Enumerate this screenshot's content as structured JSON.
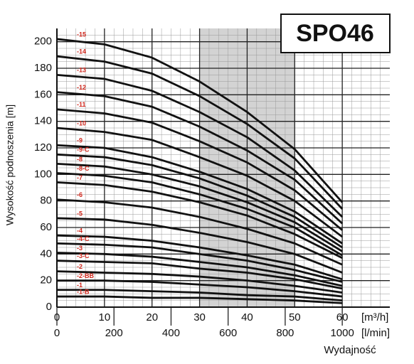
{
  "chart_data": {
    "type": "line",
    "title": "SPO46",
    "x_label": "Wydajność",
    "y_label": "Wysokość podnoszenia [m]",
    "x_unit": "[m³/h]",
    "x2_unit": "[l/min]",
    "x": [
      0,
      10,
      20,
      30,
      40,
      50,
      60
    ],
    "xlim": [
      0,
      70
    ],
    "xticks": [
      0,
      10,
      20,
      30,
      40,
      50,
      60
    ],
    "x2lim": [
      0,
      1166.7
    ],
    "x2ticks": [
      0,
      200,
      400,
      600,
      800,
      1000
    ],
    "ylim": [
      0,
      210
    ],
    "yticks": [
      0,
      20,
      40,
      60,
      80,
      100,
      120,
      140,
      160,
      180,
      200
    ],
    "grid": true,
    "shade": [
      30,
      50
    ],
    "shade_color": "#d3d3d3",
    "label_color": "#d0261b",
    "series": [
      {
        "name": "-15",
        "color": "#111111",
        "values": [
          202,
          198,
          188,
          170,
          147,
          119,
          79
        ]
      },
      {
        "name": "-14",
        "color": "#111111",
        "values": [
          189,
          185,
          176,
          159,
          138,
          112,
          74
        ]
      },
      {
        "name": "-13",
        "color": "#111111",
        "values": [
          175,
          172,
          163,
          147,
          128,
          103,
          68
        ]
      },
      {
        "name": "-12",
        "color": "#111111",
        "values": [
          162,
          159,
          151,
          136,
          118,
          96,
          63
        ]
      },
      {
        "name": "-11",
        "color": "#111111",
        "values": [
          149,
          146,
          139,
          125,
          109,
          88,
          58
        ]
      },
      {
        "name": "-10",
        "color": "#111111",
        "values": [
          135,
          132,
          126,
          113,
          99,
          80,
          53
        ]
      },
      {
        "name": "-9",
        "color": "#111111",
        "values": [
          122,
          120,
          113,
          102,
          89,
          72,
          48
        ]
      },
      {
        "name": "-9-C",
        "color": "#111111",
        "values": [
          115,
          113,
          107,
          97,
          84,
          68,
          45
        ]
      },
      {
        "name": "-8",
        "color": "#111111",
        "values": [
          108,
          106,
          100,
          91,
          79,
          64,
          42
        ]
      },
      {
        "name": "-8-C",
        "color": "#111111",
        "values": [
          101,
          99,
          94,
          85,
          74,
          60,
          39
        ]
      },
      {
        "name": "-7",
        "color": "#111111",
        "values": [
          94,
          92,
          87,
          79,
          69,
          55,
          37
        ]
      },
      {
        "name": "-6",
        "color": "#111111",
        "values": [
          81,
          79,
          75,
          68,
          59,
          48,
          32
        ]
      },
      {
        "name": "-5",
        "color": "#111111",
        "values": [
          67,
          66,
          62,
          56,
          49,
          40,
          26
        ]
      },
      {
        "name": "-4",
        "color": "#111111",
        "values": [
          54,
          53,
          50,
          45,
          39,
          32,
          21
        ]
      },
      {
        "name": "-4-C",
        "color": "#111111",
        "values": [
          48,
          47,
          45,
          40,
          35,
          28,
          19
        ]
      },
      {
        "name": "-3",
        "color": "#111111",
        "values": [
          41,
          40,
          38,
          34,
          30,
          24,
          16
        ]
      },
      {
        "name": "-3-C",
        "color": "#111111",
        "values": [
          35,
          34,
          33,
          29,
          26,
          21,
          14
        ]
      },
      {
        "name": "-2",
        "color": "#111111",
        "values": [
          27,
          26,
          25,
          23,
          20,
          16,
          11
        ]
      },
      {
        "name": "-2-BB",
        "color": "#111111",
        "values": [
          20,
          20,
          19,
          17,
          15,
          12,
          8
        ]
      },
      {
        "name": "-1",
        "color": "#111111",
        "values": [
          13,
          13,
          12,
          11,
          9,
          8,
          5
        ]
      },
      {
        "name": "-1-B",
        "color": "#111111",
        "values": [
          8,
          8,
          7,
          7,
          6,
          5,
          3
        ]
      }
    ]
  }
}
